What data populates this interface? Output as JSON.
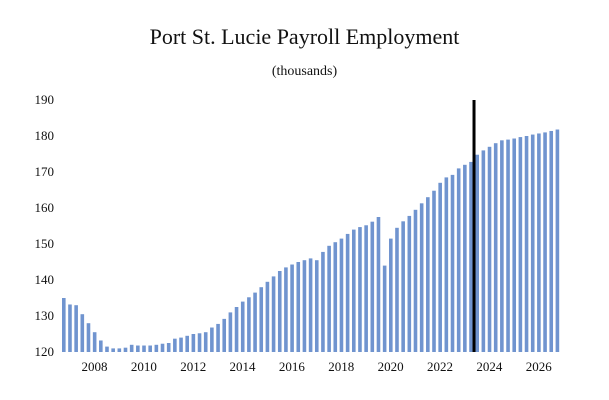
{
  "chart_data": {
    "type": "bar",
    "title": "Port St. Lucie Payroll Employment",
    "subtitle": "(thousands)",
    "xlabel": "",
    "ylabel": "",
    "ylim": [
      120,
      190
    ],
    "yticks": [
      120,
      130,
      140,
      150,
      160,
      170,
      180,
      190
    ],
    "xticks": [
      "2008",
      "2010",
      "2012",
      "2014",
      "2016",
      "2018",
      "2020",
      "2022",
      "2024",
      "2026"
    ],
    "grid": false,
    "legend": "none",
    "bar_color": "#7094cf",
    "marker_line_color": "#000000",
    "forecast_start": "2023Q3",
    "categories": [
      "2007Q1",
      "2007Q2",
      "2007Q3",
      "2007Q4",
      "2008Q1",
      "2008Q2",
      "2008Q3",
      "2008Q4",
      "2009Q1",
      "2009Q2",
      "2009Q3",
      "2009Q4",
      "2010Q1",
      "2010Q2",
      "2010Q3",
      "2010Q4",
      "2011Q1",
      "2011Q2",
      "2011Q3",
      "2011Q4",
      "2012Q1",
      "2012Q2",
      "2012Q3",
      "2012Q4",
      "2013Q1",
      "2013Q2",
      "2013Q3",
      "2013Q4",
      "2014Q1",
      "2014Q2",
      "2014Q3",
      "2014Q4",
      "2015Q1",
      "2015Q2",
      "2015Q3",
      "2015Q4",
      "2016Q1",
      "2016Q2",
      "2016Q3",
      "2016Q4",
      "2017Q1",
      "2017Q2",
      "2017Q3",
      "2017Q4",
      "2018Q1",
      "2018Q2",
      "2018Q3",
      "2018Q4",
      "2019Q1",
      "2019Q2",
      "2019Q3",
      "2019Q4",
      "2020Q1",
      "2020Q2",
      "2020Q3",
      "2020Q4",
      "2021Q1",
      "2021Q2",
      "2021Q3",
      "2021Q4",
      "2022Q1",
      "2022Q2",
      "2022Q3",
      "2022Q4",
      "2023Q1",
      "2023Q2",
      "2023Q3",
      "2023Q4",
      "2024Q1",
      "2024Q2",
      "2024Q3",
      "2024Q4",
      "2025Q1",
      "2025Q2",
      "2025Q3",
      "2025Q4",
      "2026Q1",
      "2026Q2",
      "2026Q3",
      "2026Q4",
      "2027Q1"
    ],
    "values": [
      135,
      133.2,
      133,
      130.5,
      128,
      125.5,
      123.2,
      121.5,
      121,
      121,
      121.2,
      122,
      121.8,
      121.8,
      121.8,
      122,
      122.3,
      122.5,
      123.7,
      124,
      124.5,
      125,
      125.2,
      125.5,
      126.8,
      127.8,
      129.2,
      131,
      132.5,
      134,
      135.2,
      136.5,
      138,
      139.5,
      141,
      142.5,
      143.5,
      144.3,
      145,
      145.5,
      146,
      145.5,
      147.8,
      149.5,
      150.5,
      151.5,
      152.8,
      154,
      154.7,
      155.2,
      156.2,
      157.5,
      144,
      151.5,
      154.5,
      156.3,
      157.8,
      159.5,
      161.3,
      163,
      164.8,
      167,
      168.5,
      169.2,
      171,
      172,
      172.8,
      174.8,
      176,
      177,
      178,
      178.8,
      179,
      179.3,
      179.7,
      180,
      180.4,
      180.7,
      181,
      181.4,
      181.8
    ]
  }
}
